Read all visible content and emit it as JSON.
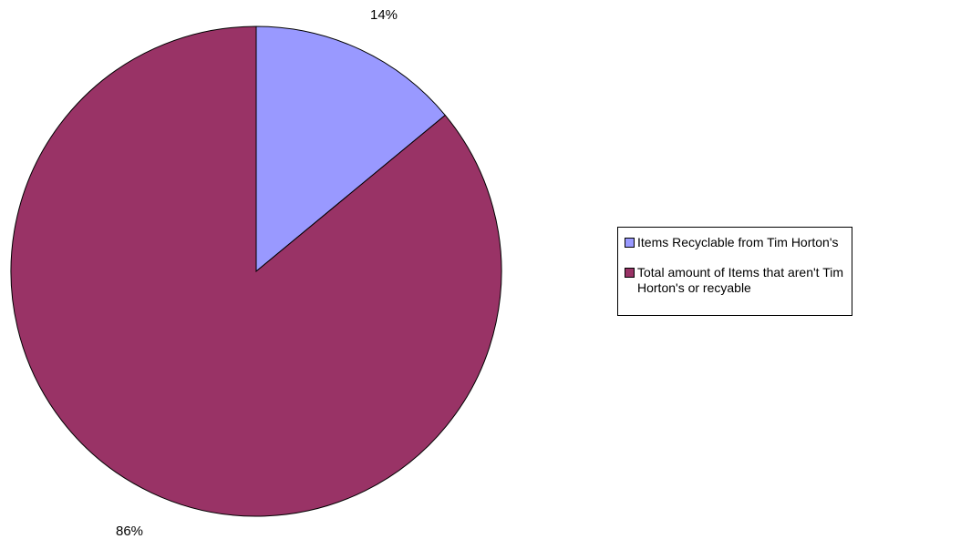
{
  "chart_data": {
    "type": "pie",
    "title": "",
    "slices": [
      {
        "name": "Items Recyclable from Tim Horton's",
        "value": 14,
        "label": "14%",
        "color": "#9999ff"
      },
      {
        "name": "Total amount of Items that aren't Tim Horton's or recyable",
        "value": 86,
        "label": "86%",
        "color": "#993366"
      }
    ],
    "start_angle_deg": 0,
    "direction": "clockwise",
    "legend": {
      "placement": "right"
    }
  }
}
